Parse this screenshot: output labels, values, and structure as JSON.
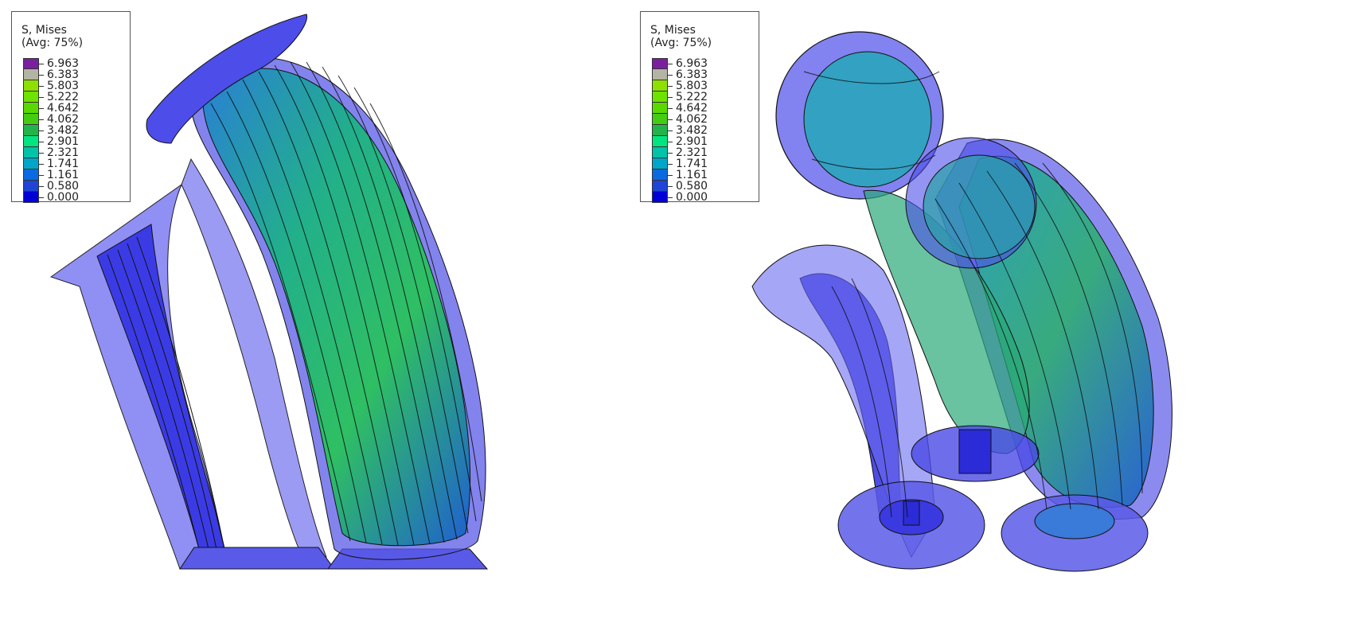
{
  "viewports": [
    {
      "id": "left",
      "legend": {
        "title_line1": "S, Mises",
        "title_line2": "(Avg: 75%)",
        "values": [
          "6.963",
          "6.383",
          "5.803",
          "5.222",
          "4.642",
          "4.062",
          "3.482",
          "2.901",
          "2.321",
          "1.741",
          "1.161",
          "0.580",
          "0.000"
        ],
        "colors": [
          "#7a1fa0",
          "#b4b4a6",
          "#8ee000",
          "#6fe300",
          "#5ad900",
          "#44cc11",
          "#22b34a",
          "#00e57f",
          "#00c3a8",
          "#00a6c8",
          "#0a6ae0",
          "#1e45d8",
          "#0000d6"
        ]
      }
    },
    {
      "id": "right",
      "legend": {
        "title_line1": "S, Mises",
        "title_line2": "(Avg: 75%)",
        "values": [
          "6.963",
          "6.383",
          "5.803",
          "5.222",
          "4.642",
          "4.062",
          "3.482",
          "2.901",
          "2.321",
          "1.741",
          "1.161",
          "0.580",
          "0.000"
        ],
        "colors": [
          "#7a1fa0",
          "#b4b4a6",
          "#8ee000",
          "#6fe300",
          "#5ad900",
          "#44cc11",
          "#22b34a",
          "#00e57f",
          "#00c3a8",
          "#00a6c8",
          "#0a6ae0",
          "#1e45d8",
          "#0000d6"
        ]
      }
    }
  ],
  "colors": {
    "shell_blue": "#5a5ae8",
    "stress_green": "#2fbf63",
    "stress_cyan": "#1aa6a6",
    "edge": "#111111"
  }
}
